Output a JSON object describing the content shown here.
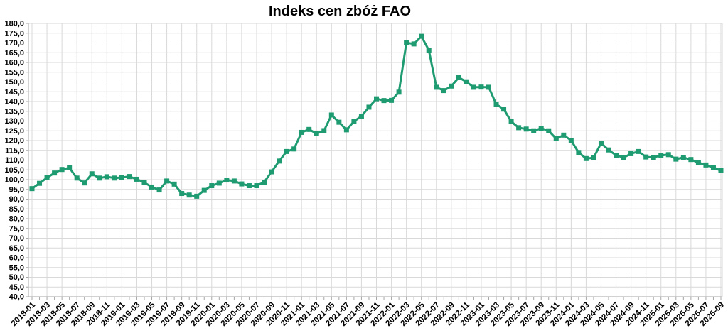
{
  "header": {
    "title": "Indeks cen zbóż FAO"
  },
  "colors": {
    "line": "#1e9b70",
    "marker": "#1e9b70",
    "grid": "#d9d9d9",
    "plot_border": "#d9d9d9",
    "axis": "#a6a6a6",
    "text": "#000000",
    "background": "#ffffff"
  },
  "chart_data": {
    "type": "line",
    "title": "Indeks cen zbóż FAO",
    "series_name": "Indeks cen zbóż FAO",
    "marker": "square",
    "grid": true,
    "legend": false,
    "ylim": [
      40,
      180
    ],
    "ytick_step": 5,
    "decimal_separator": ",",
    "x_label_every": 2,
    "x": [
      "2018-01",
      "2018-02",
      "2018-03",
      "2018-04",
      "2018-05",
      "2018-06",
      "2018-07",
      "2018-08",
      "2018-09",
      "2018-10",
      "2018-11",
      "2018-12",
      "2019-01",
      "2019-02",
      "2019-03",
      "2019-04",
      "2019-05",
      "2019-06",
      "2019-07",
      "2019-08",
      "2019-09",
      "2019-10",
      "2019-11",
      "2019-12",
      "2020-01",
      "2020-02",
      "2020-03",
      "2020-04",
      "2020-05",
      "2020-06",
      "2020-07",
      "2020-08",
      "2020-09",
      "2020-10",
      "2020-11",
      "2020-12",
      "2021-01",
      "2021-02",
      "2021-03",
      "2021-04",
      "2021-05",
      "2021-06",
      "2021-07",
      "2021-08",
      "2021-09",
      "2021-10",
      "2021-11",
      "2021-12",
      "2022-01",
      "2022-02",
      "2022-03",
      "2022-04",
      "2022-05",
      "2022-06",
      "2022-07",
      "2022-08",
      "2022-09",
      "2022-10",
      "2022-11",
      "2022-12",
      "2023-01",
      "2023-02",
      "2023-03",
      "2023-04",
      "2023-05",
      "2023-06",
      "2023-07",
      "2023-08",
      "2023-09",
      "2023-10",
      "2023-11",
      "2023-12",
      "2024-01",
      "2024-02",
      "2024-03",
      "2024-04",
      "2024-05",
      "2024-06",
      "2024-07",
      "2024-08",
      "2024-09",
      "2024-10",
      "2024-11",
      "2024-12",
      "2025-01",
      "2025-02",
      "2025-03",
      "2025-04",
      "2025-05",
      "2025-06",
      "2025-07",
      "2025-08",
      "2025-09"
    ],
    "values": [
      95.4,
      98.1,
      101.0,
      103.4,
      105.2,
      106.0,
      100.8,
      98.3,
      103.0,
      100.8,
      101.5,
      100.8,
      101.1,
      101.6,
      100.2,
      98.5,
      96.2,
      94.7,
      99.3,
      97.7,
      92.9,
      92.1,
      91.5,
      94.5,
      96.9,
      98.2,
      99.8,
      99.3,
      97.8,
      96.9,
      96.9,
      98.7,
      104.0,
      109.5,
      114.4,
      115.7,
      124.2,
      125.7,
      123.6,
      125.1,
      133.1,
      129.4,
      125.5,
      129.8,
      132.5,
      137.1,
      141.4,
      140.5,
      140.6,
      144.8,
      170.1,
      169.5,
      173.4,
      166.3,
      147.3,
      145.6,
      147.9,
      152.3,
      150.1,
      147.3,
      147.4,
      147.3,
      138.6,
      136.1,
      129.7,
      126.6,
      125.9,
      125.0,
      126.3,
      125.0,
      121.0,
      122.8,
      120.1,
      113.9,
      110.8,
      111.2,
      118.7,
      115.2,
      112.5,
      111.3,
      113.3,
      114.4,
      111.6,
      111.4,
      112.4,
      112.8,
      110.5,
      111.3,
      110.3,
      108.7,
      107.5,
      106.2,
      104.6
    ],
    "x_tick_labels": [
      "2018-01",
      "2018-03",
      "2018-05",
      "2018-07",
      "2018-09",
      "2018-11",
      "2019-01",
      "2019-03",
      "2019-05",
      "2019-07",
      "2019-09",
      "2019-11",
      "2020-01",
      "2020-03",
      "2020-05",
      "2020-07",
      "2020-09",
      "2020-11",
      "2021-01",
      "2021-03",
      "2021-05",
      "2021-07",
      "2021-09",
      "2021-11",
      "2022-01",
      "2022-03",
      "2022-05",
      "2022-07",
      "2022-09",
      "2022-11",
      "2023-01",
      "2023-03",
      "2023-05",
      "2023-07",
      "2023-09",
      "2023-11",
      "2024-01",
      "2024-03",
      "2024-05",
      "2024-07",
      "2024-09",
      "2024-11",
      "2025-01",
      "2025-03",
      "2025-05",
      "2025-07",
      "2025-09"
    ],
    "y_tick_labels": [
      "40,0",
      "45,0",
      "50,0",
      "55,0",
      "60,0",
      "65,0",
      "70,0",
      "75,0",
      "80,0",
      "85,0",
      "90,0",
      "95,0",
      "100,0",
      "105,0",
      "110,0",
      "115,0",
      "120,0",
      "125,0",
      "130,0",
      "135,0",
      "140,0",
      "145,0",
      "150,0",
      "155,0",
      "160,0",
      "165,0",
      "170,0",
      "175,0",
      "180,0"
    ]
  }
}
